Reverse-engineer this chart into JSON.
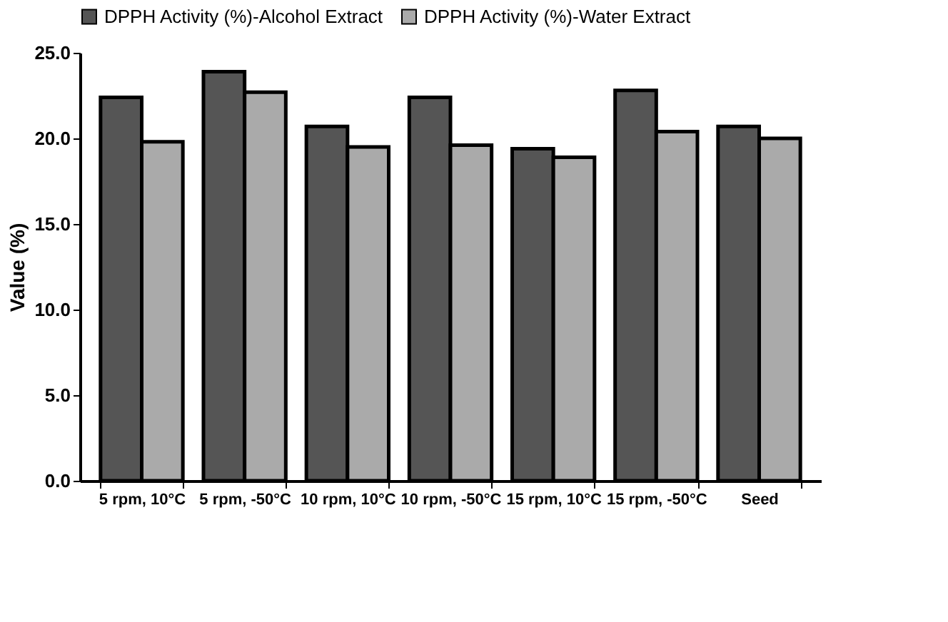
{
  "chart_data": {
    "type": "bar",
    "ylabel": "Value (%)",
    "categories": [
      "5 rpm, 10°C",
      "5 rpm, -50°C",
      "10 rpm, 10°C",
      "10 rpm, -50°C",
      "15 rpm, 10°C",
      "15 rpm, -50°C",
      "Seed"
    ],
    "series": [
      {
        "name": "DPPH Activity (%)-Alcohol Extract",
        "color": "#555555",
        "values": [
          22.4,
          23.9,
          20.7,
          22.4,
          19.4,
          22.8,
          20.7
        ]
      },
      {
        "name": "DPPH Activity (%)-Water Extract",
        "color": "#aaaaaa",
        "values": [
          19.8,
          22.7,
          19.5,
          19.6,
          18.9,
          20.4,
          20.0
        ]
      }
    ],
    "ylim": [
      0,
      25
    ],
    "yticks": [
      {
        "value": 0,
        "label": "0.0"
      },
      {
        "value": 5,
        "label": "5.0"
      },
      {
        "value": 10,
        "label": "10.0"
      },
      {
        "value": 15,
        "label": "15.0"
      },
      {
        "value": 20,
        "label": "20.0"
      },
      {
        "value": 25,
        "label": "25.0"
      }
    ],
    "grid": false,
    "legend": "top"
  }
}
